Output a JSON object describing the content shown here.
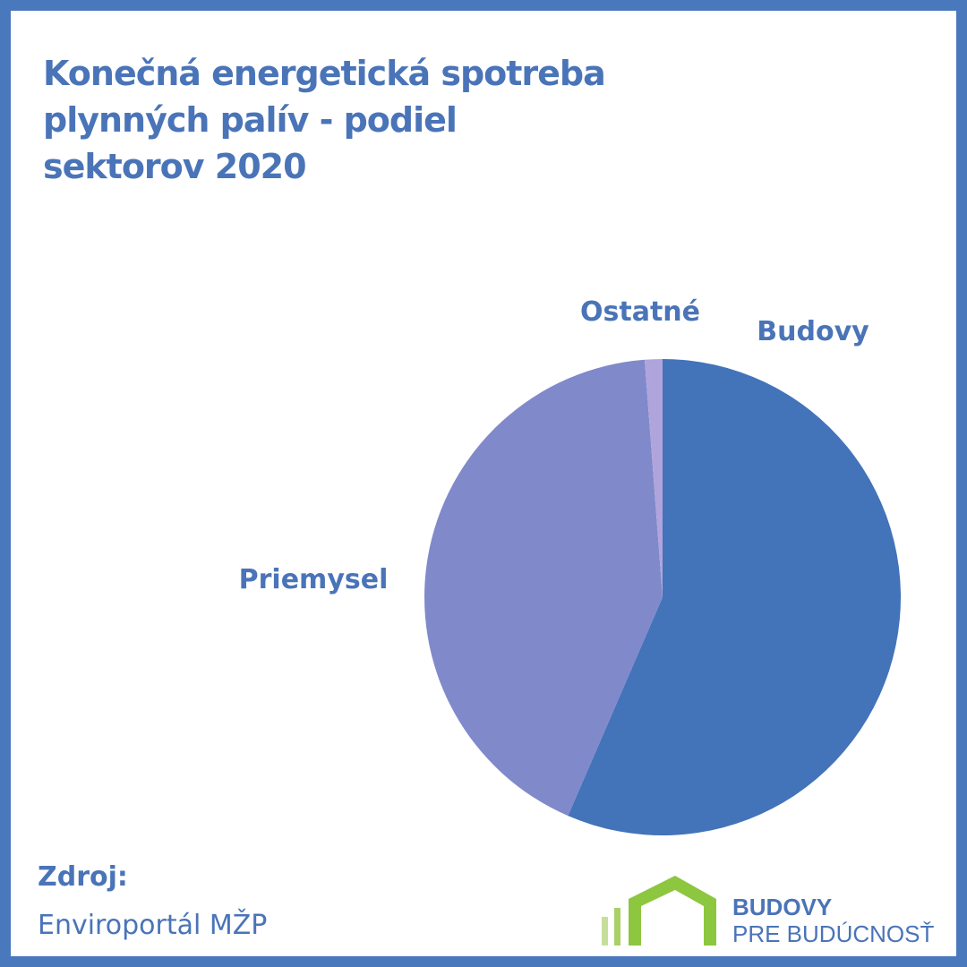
{
  "title_lines": [
    "Konečná energetická spotreba",
    "plynných palív - podiel",
    "sektorov 2020"
  ],
  "colors": {
    "border": "#4a78bd",
    "text": "#4a74b8",
    "logo_green": "#8dc63f",
    "logo_green_light": "#c5df9a"
  },
  "chart_data": {
    "type": "pie",
    "title": "Konečná energetická spotreba plynných palív - podiel sektorov 2020",
    "start_angle_deg": 0,
    "direction": "clockwise",
    "slices": [
      {
        "label": "Budovy",
        "value": 56.5,
        "color": "#4373b9"
      },
      {
        "label": "Priemysel",
        "value": 42.3,
        "color": "#8089ca"
      },
      {
        "label": "Ostatné",
        "value": 1.2,
        "color": "#b0a4dc"
      }
    ]
  },
  "source": {
    "label": "Zdroj:",
    "value": "Enviroportál MŽP"
  },
  "logo": {
    "line1": "BUDOVY",
    "line2": "PRE BUDÚCNOSŤ",
    "icon": "house-icon"
  }
}
